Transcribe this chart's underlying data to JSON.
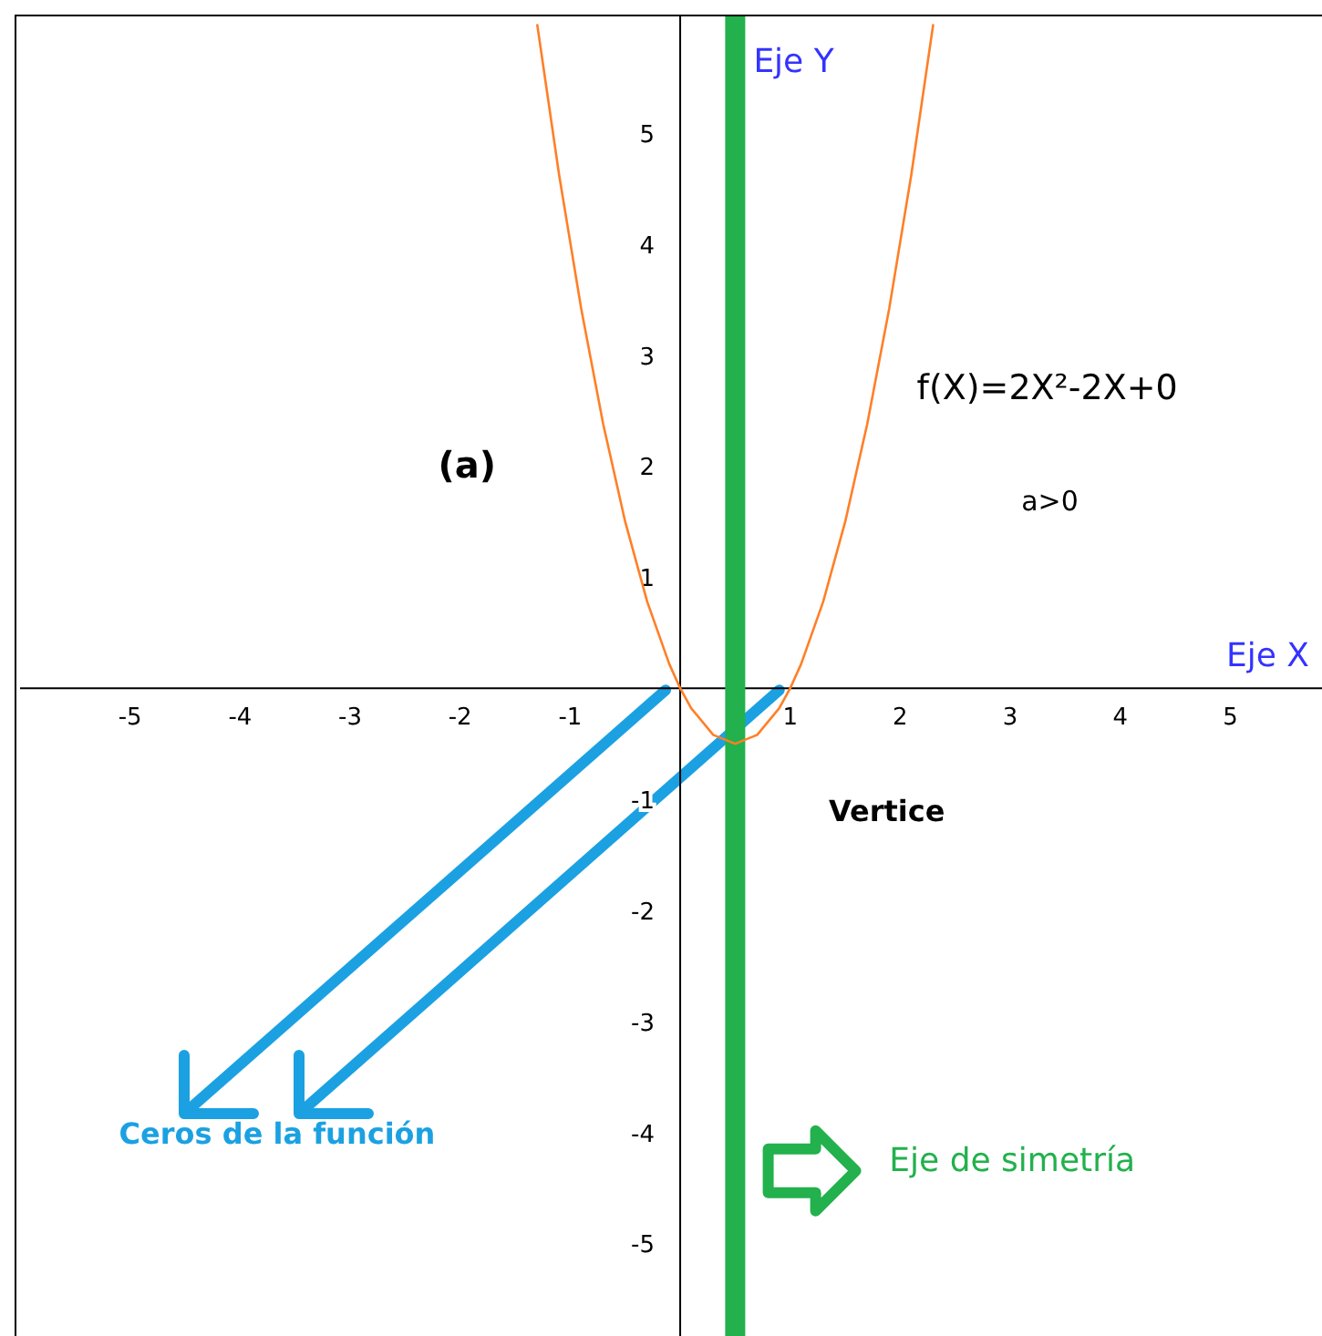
{
  "chart_data": {
    "type": "line",
    "xlabel": "Eje X",
    "ylabel": "Eje Y",
    "x": [
      -1.3,
      -1.1,
      -0.9,
      -0.7,
      -0.5,
      -0.3,
      -0.1,
      0,
      0.1,
      0.3,
      0.5,
      0.7,
      0.9,
      1,
      1.1,
      1.3,
      1.5,
      1.7,
      1.9,
      2.1,
      2.3
    ],
    "series": [
      {
        "color": "#ff7f27",
        "values": [
          5.98,
          4.62,
          3.42,
          2.38,
          1.5,
          0.78,
          0.22,
          0,
          -0.18,
          -0.42,
          -0.5,
          -0.42,
          -0.18,
          0,
          0.22,
          0.78,
          1.5,
          2.38,
          3.42,
          4.62,
          5.98
        ]
      }
    ],
    "xlim": [
      -6,
      5.85
    ],
    "ylim": [
      -5.85,
      6.05
    ],
    "xticks": [
      -5,
      -4,
      -3,
      -2,
      -1,
      1,
      2,
      3,
      4,
      5
    ],
    "yticks": [
      -5,
      -4,
      -3,
      -2,
      -1,
      1,
      2,
      3,
      4,
      5
    ],
    "ref_lines": [
      {
        "axis": "x",
        "value": 0.5,
        "label": "Eje de simetría",
        "color": "#22b14c"
      }
    ],
    "annotations": [
      "(a)",
      "f(X)=2X²-2X+0",
      "a>0",
      "Vertice",
      "Ceros de la función"
    ],
    "marker": "none",
    "line_style": "solid"
  }
}
